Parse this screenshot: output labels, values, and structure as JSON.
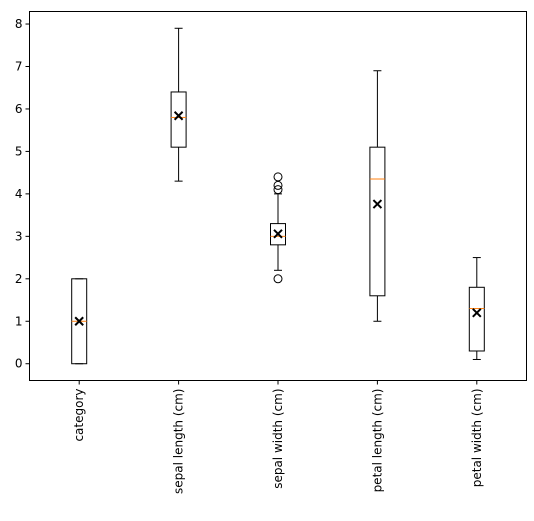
{
  "chart_data": {
    "type": "box",
    "categories": [
      "category",
      "sepal length (cm)",
      "sepal width (cm)",
      "petal length (cm)",
      "petal width (cm)"
    ],
    "boxes": [
      {
        "whislo": 0,
        "q1": 0,
        "med": 1,
        "q3": 2,
        "whishi": 2,
        "mean": 1,
        "fliers": []
      },
      {
        "whislo": 4.3,
        "q1": 5.1,
        "med": 5.8,
        "q3": 6.4,
        "whishi": 7.9,
        "mean": 5.84,
        "fliers": []
      },
      {
        "whislo": 2.2,
        "q1": 2.8,
        "med": 3.0,
        "q3": 3.3,
        "whishi": 4.0,
        "mean": 3.06,
        "fliers": [
          2.0,
          4.1,
          4.2,
          4.4
        ]
      },
      {
        "whislo": 1.0,
        "q1": 1.6,
        "med": 4.35,
        "q3": 5.1,
        "whishi": 6.9,
        "mean": 3.76,
        "fliers": []
      },
      {
        "whislo": 0.1,
        "q1": 0.3,
        "med": 1.3,
        "q3": 1.8,
        "whishi": 2.5,
        "mean": 1.2,
        "fliers": []
      }
    ],
    "box_color": "#000000",
    "median_color": "#ff7f0e",
    "mean_color": "#000000",
    "ylim": [
      -0.395,
      8.295
    ],
    "yticks": [
      0,
      1,
      2,
      3,
      4,
      5,
      6,
      7,
      8
    ],
    "grid": false
  }
}
